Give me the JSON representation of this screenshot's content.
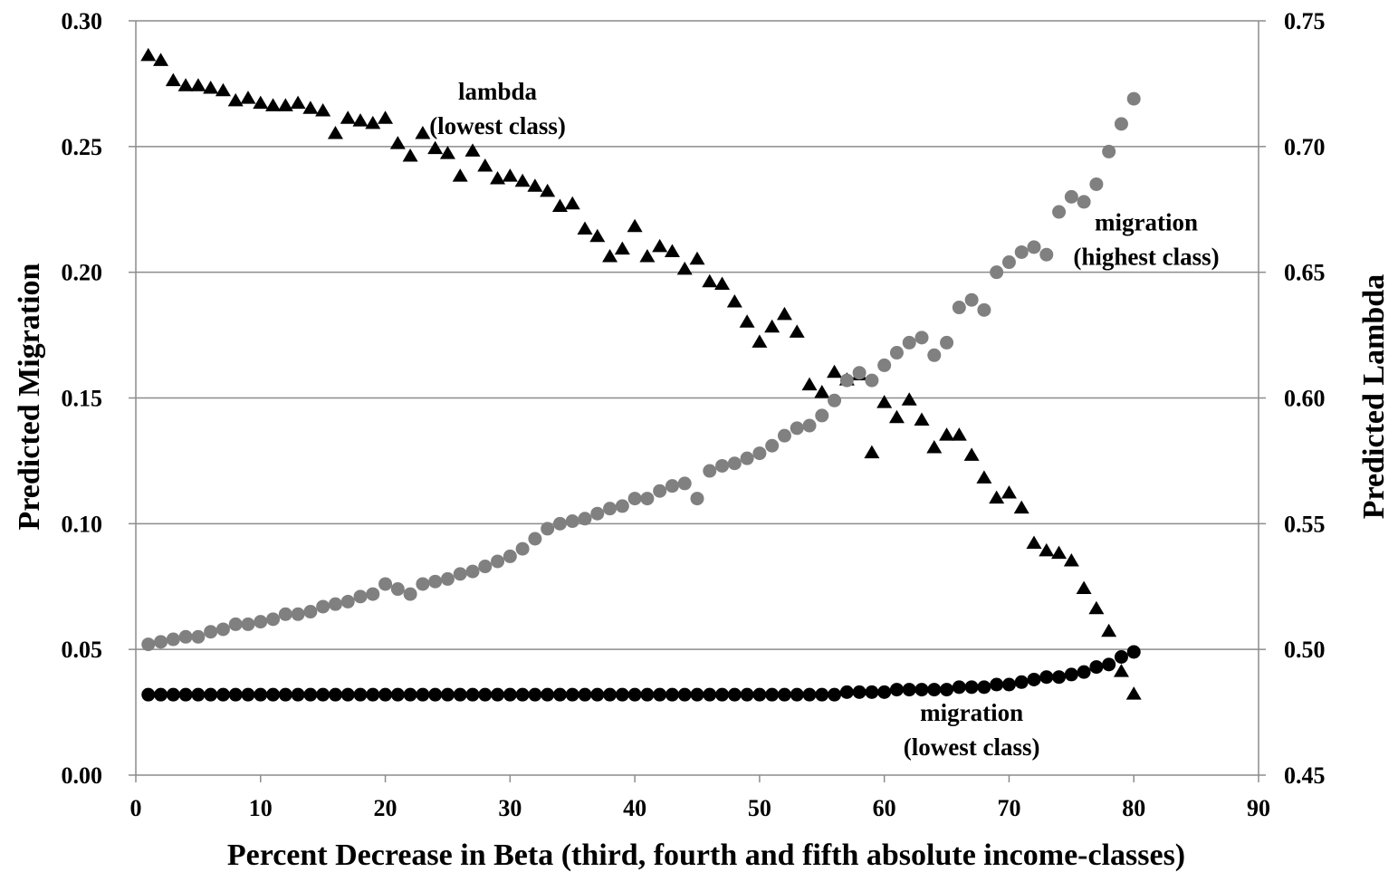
{
  "chart_data": {
    "type": "scatter",
    "title": "",
    "xlabel": "Percent Decrease in Beta (third, fourth and fifth absolute income-classes)",
    "ylabel_left": "Predicted Migration",
    "ylabel_right": "Predicted Lambda",
    "xlim": [
      0,
      90
    ],
    "ylim_left": [
      0.0,
      0.3
    ],
    "ylim_right": [
      0.45,
      0.75
    ],
    "x_ticks": [
      "0",
      "10",
      "20",
      "30",
      "40",
      "50",
      "60",
      "70",
      "80",
      "90"
    ],
    "y_ticks_left": [
      "0.00",
      "0.05",
      "0.10",
      "0.15",
      "0.20",
      "0.25",
      "0.30"
    ],
    "y_ticks_right": [
      "0.45",
      "0.50",
      "0.55",
      "0.60",
      "0.65",
      "0.70",
      "0.75"
    ],
    "grid": "horizontal",
    "annotations": [
      {
        "lines": [
          "lambda",
          "(lowest class)"
        ],
        "x": 29,
        "y_left": 0.265
      },
      {
        "lines": [
          "migration",
          "(highest class)"
        ],
        "x": 81,
        "y_left": 0.213
      },
      {
        "lines": [
          "migration",
          "(lowest class)"
        ],
        "x": 67,
        "y_left": 0.018
      }
    ],
    "series": [
      {
        "axis": "right",
        "marker": "triangle",
        "color": "#000000",
        "x": [
          1,
          2,
          3,
          4,
          5,
          6,
          7,
          8,
          9,
          10,
          11,
          12,
          13,
          14,
          15,
          16,
          17,
          18,
          19,
          20,
          21,
          22,
          23,
          24,
          25,
          26,
          27,
          28,
          29,
          30,
          31,
          32,
          33,
          34,
          35,
          36,
          37,
          38,
          39,
          40,
          41,
          42,
          43,
          44,
          45,
          46,
          47,
          48,
          49,
          50,
          51,
          52,
          53,
          54,
          55,
          56,
          57,
          58,
          59,
          60,
          61,
          62,
          63,
          64,
          65,
          66,
          67,
          68,
          69,
          70,
          71,
          72,
          73,
          74,
          75,
          76,
          77,
          78,
          79,
          80
        ],
        "y": [
          0.736,
          0.734,
          0.726,
          0.724,
          0.724,
          0.723,
          0.722,
          0.718,
          0.719,
          0.717,
          0.716,
          0.716,
          0.717,
          0.715,
          0.714,
          0.705,
          0.711,
          0.71,
          0.709,
          0.711,
          0.701,
          0.696,
          0.705,
          0.699,
          0.697,
          0.688,
          0.698,
          0.692,
          0.687,
          0.688,
          0.686,
          0.684,
          0.682,
          0.676,
          0.677,
          0.667,
          0.664,
          0.656,
          0.659,
          0.668,
          0.656,
          0.66,
          0.658,
          0.651,
          0.655,
          0.646,
          0.645,
          0.638,
          0.63,
          0.622,
          0.628,
          0.633,
          0.626,
          0.605,
          0.602,
          0.61,
          0.607,
          0.609,
          0.578,
          0.598,
          0.592,
          0.599,
          0.591,
          0.58,
          0.585,
          0.585,
          0.577,
          0.568,
          0.56,
          0.562,
          0.556,
          0.542,
          0.539,
          0.538,
          0.535,
          0.524,
          0.516,
          0.507,
          0.491,
          0.482
        ]
      },
      {
        "axis": "left",
        "marker": "circle",
        "color": "#808080",
        "x": [
          1,
          2,
          3,
          4,
          5,
          6,
          7,
          8,
          9,
          10,
          11,
          12,
          13,
          14,
          15,
          16,
          17,
          18,
          19,
          20,
          21,
          22,
          23,
          24,
          25,
          26,
          27,
          28,
          29,
          30,
          31,
          32,
          33,
          34,
          35,
          36,
          37,
          38,
          39,
          40,
          41,
          42,
          43,
          44,
          45,
          46,
          47,
          48,
          49,
          50,
          51,
          52,
          53,
          54,
          55,
          56,
          57,
          58,
          59,
          60,
          61,
          62,
          63,
          64,
          65,
          66,
          67,
          68,
          69,
          70,
          71,
          72,
          73,
          74,
          75,
          76,
          77,
          78,
          79,
          80
        ],
        "y": [
          0.052,
          0.053,
          0.054,
          0.055,
          0.055,
          0.057,
          0.058,
          0.06,
          0.06,
          0.061,
          0.062,
          0.064,
          0.064,
          0.065,
          0.067,
          0.068,
          0.069,
          0.071,
          0.072,
          0.076,
          0.074,
          0.072,
          0.076,
          0.077,
          0.078,
          0.08,
          0.081,
          0.083,
          0.085,
          0.087,
          0.09,
          0.094,
          0.098,
          0.1,
          0.101,
          0.102,
          0.104,
          0.106,
          0.107,
          0.11,
          0.11,
          0.113,
          0.115,
          0.116,
          0.11,
          0.121,
          0.123,
          0.124,
          0.126,
          0.128,
          0.131,
          0.135,
          0.138,
          0.139,
          0.143,
          0.149,
          0.157,
          0.16,
          0.157,
          0.163,
          0.168,
          0.172,
          0.174,
          0.167,
          0.172,
          0.186,
          0.189,
          0.185,
          0.2,
          0.204,
          0.208,
          0.21,
          0.207,
          0.224,
          0.23,
          0.228,
          0.235,
          0.248,
          0.259,
          0.269
        ]
      },
      {
        "axis": "left",
        "marker": "circle",
        "color": "#000000",
        "x": [
          1,
          2,
          3,
          4,
          5,
          6,
          7,
          8,
          9,
          10,
          11,
          12,
          13,
          14,
          15,
          16,
          17,
          18,
          19,
          20,
          21,
          22,
          23,
          24,
          25,
          26,
          27,
          28,
          29,
          30,
          31,
          32,
          33,
          34,
          35,
          36,
          37,
          38,
          39,
          40,
          41,
          42,
          43,
          44,
          45,
          46,
          47,
          48,
          49,
          50,
          51,
          52,
          53,
          54,
          55,
          56,
          57,
          58,
          59,
          60,
          61,
          62,
          63,
          64,
          65,
          66,
          67,
          68,
          69,
          70,
          71,
          72,
          73,
          74,
          75,
          76,
          77,
          78,
          79,
          80
        ],
        "y": [
          0.032,
          0.032,
          0.032,
          0.032,
          0.032,
          0.032,
          0.032,
          0.032,
          0.032,
          0.032,
          0.032,
          0.032,
          0.032,
          0.032,
          0.032,
          0.032,
          0.032,
          0.032,
          0.032,
          0.032,
          0.032,
          0.032,
          0.032,
          0.032,
          0.032,
          0.032,
          0.032,
          0.032,
          0.032,
          0.032,
          0.032,
          0.032,
          0.032,
          0.032,
          0.032,
          0.032,
          0.032,
          0.032,
          0.032,
          0.032,
          0.032,
          0.032,
          0.032,
          0.032,
          0.032,
          0.032,
          0.032,
          0.032,
          0.032,
          0.032,
          0.032,
          0.032,
          0.032,
          0.032,
          0.032,
          0.032,
          0.033,
          0.033,
          0.033,
          0.033,
          0.034,
          0.034,
          0.034,
          0.034,
          0.034,
          0.035,
          0.035,
          0.035,
          0.036,
          0.036,
          0.037,
          0.038,
          0.039,
          0.039,
          0.04,
          0.041,
          0.043,
          0.044,
          0.047,
          0.049
        ]
      }
    ]
  }
}
